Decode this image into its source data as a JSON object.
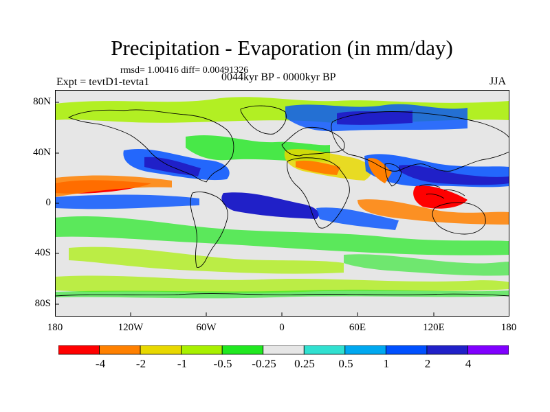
{
  "title": "Precipitation - Evaporation (in mm/day)",
  "stats": "rmsd= 1.00416 diff= 0.00491326",
  "experiment": "Expt = tevtD1-tevta1",
  "period": "0044kyr BP - 0000kyr BP",
  "season": "JJA",
  "axes": {
    "lat_labels": [
      "80N",
      "40N",
      "0",
      "40S",
      "80S"
    ],
    "lon_labels": [
      "180",
      "120W",
      "60W",
      "0",
      "60E",
      "120E",
      "180"
    ]
  },
  "colorbar": {
    "colors": [
      "#ff0000",
      "#ff8000",
      "#e8d800",
      "#a8f000",
      "#20e820",
      "#e6e6e6",
      "#30e0d0",
      "#00a8f0",
      "#0050ff",
      "#2020c8",
      "#8000ff"
    ],
    "labels": [
      "-4",
      "-2",
      "-1",
      "-0.5",
      "-0.25",
      "0.25",
      "0.5",
      "1",
      "2",
      "4"
    ]
  },
  "map_fields": {
    "land": "#ffffff",
    "ocean_base": "#e6e6e6"
  }
}
